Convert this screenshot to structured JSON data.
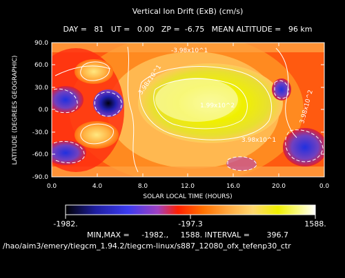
{
  "chart_data": {
    "type": "heatmap",
    "title": "Vertical Ion Drift (ExB) (cm/s)",
    "subtitle": "DAY =   81   UT =   0.00   ZP =  -6.75   MEAN ALTITUDE =   96 km",
    "xlabel": "SOLAR LOCAL TIME (HOURS)",
    "ylabel": "LATITUDE (DEGREES GEOGRAPHIC)",
    "xlim": [
      0,
      24
    ],
    "ylim": [
      -90,
      90
    ],
    "x_ticks": [
      "0.0",
      "4.0",
      "8.0",
      "12.0",
      "16.0",
      "20.0",
      "0.0"
    ],
    "y_ticks": [
      "90.0",
      "60.0",
      "30.0",
      "0.0",
      "-30.0",
      "-60.0",
      "-90.0"
    ],
    "contour_labels": [
      "3.98x10^1",
      "1.99x10^2",
      "3.98x10^1",
      "-3.98x10^1",
      "3.98x10^2"
    ],
    "colorbar": {
      "min_label": "-1982.",
      "mid_label": "-197.3",
      "max_label": "1588."
    },
    "stats": {
      "min": -1982.0,
      "max": 1588.0,
      "interval": 396.7
    },
    "stats_text": "MIN,MAX =     -1982.,     1588. INTERVAL =       396.7",
    "footer": "/hao/aim3/emery/tiegcm_1.94.2/tiegcm-linux/s887_12080_ofx_tefenp30_ctr",
    "palette": [
      "#000000",
      "#1e1ea0",
      "#3b3bf0",
      "#a040c0",
      "#ff2000",
      "#ff7000",
      "#ffa840",
      "#ffd870",
      "#f0f000",
      "#fafa80",
      "#ffffff"
    ]
  }
}
